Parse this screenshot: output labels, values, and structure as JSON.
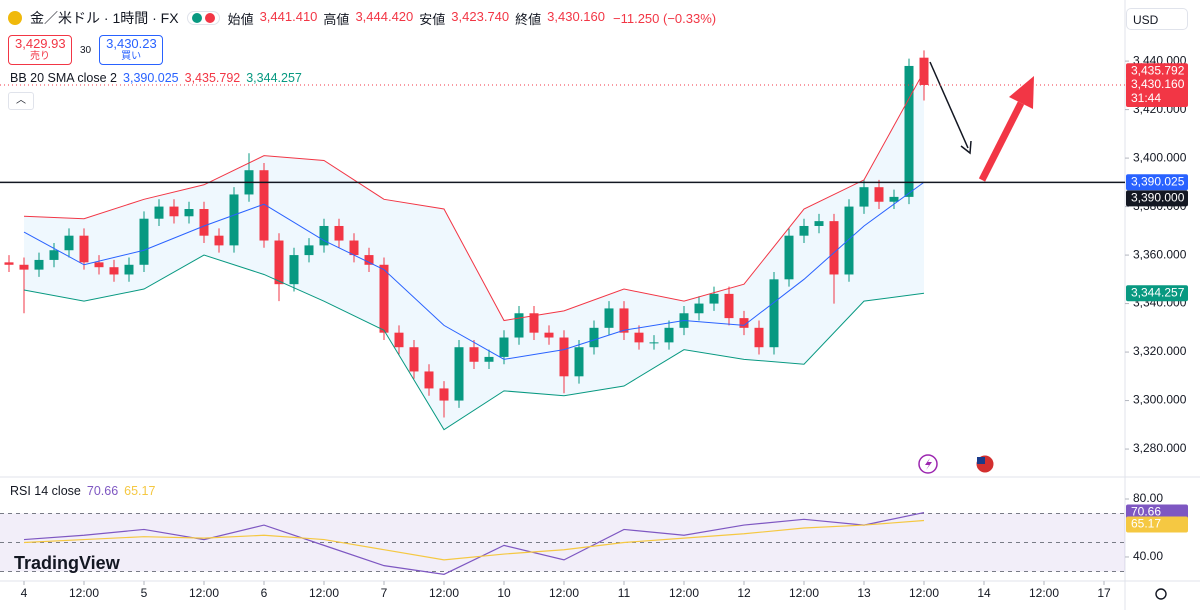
{
  "header": {
    "symbol": "金／米ドル · 1時間 · FX",
    "ohlc": [
      {
        "label": "始値",
        "value": "3,441.410"
      },
      {
        "label": "高値",
        "value": "3,444.420"
      },
      {
        "label": "安値",
        "value": "3,423.740"
      },
      {
        "label": "終値",
        "value": "3,430.160"
      }
    ],
    "change": "−11.250 (−0.33%)",
    "sell": {
      "price": "3,429.93",
      "label": "売り"
    },
    "spread": "30",
    "buy": {
      "price": "3,430.23",
      "label": "買い"
    },
    "currency": "USD",
    "logo": "TradingView"
  },
  "chart_data": [
    {
      "type": "candlestick",
      "up_color": "#089981",
      "down_color": "#f23645",
      "x": [
        -3,
        0,
        3,
        6,
        9,
        12,
        15,
        18,
        21,
        24,
        27,
        30,
        33,
        36,
        39,
        42,
        45,
        48,
        51,
        54,
        57,
        60,
        63,
        66,
        69,
        72,
        75,
        78,
        81,
        84,
        87,
        90,
        93,
        96,
        99,
        102,
        105,
        108,
        111,
        114,
        117,
        120,
        123,
        126,
        129,
        132,
        135,
        138,
        141,
        144,
        147,
        150,
        153,
        156,
        159,
        162,
        165,
        168,
        171,
        174,
        177,
        180
      ],
      "open": [
        3357,
        3356,
        3354,
        3358,
        3362,
        3368,
        3357,
        3355,
        3352,
        3356,
        3375,
        3380,
        3376,
        3379,
        3368,
        3364,
        3385,
        3395,
        3366,
        3348,
        3360,
        3364,
        3372,
        3366,
        3360,
        3356,
        3328,
        3322,
        3312,
        3305,
        3300,
        3322,
        3316,
        3318,
        3326,
        3336,
        3328,
        3326,
        3310,
        3322,
        3330,
        3338,
        3328,
        3324,
        3324,
        3330,
        3336,
        3340,
        3344,
        3334,
        3330,
        3322,
        3350,
        3368,
        3372,
        3374,
        3352,
        3380,
        3388,
        3382,
        3384,
        3441.41
      ],
      "high": [
        3360,
        3359,
        3361,
        3365,
        3371,
        3371,
        3360,
        3358,
        3359,
        3378,
        3383,
        3383,
        3382,
        3382,
        3371,
        3388,
        3402,
        3398,
        3369,
        3363,
        3367,
        3375,
        3375,
        3369,
        3363,
        3359,
        3331,
        3325,
        3315,
        3308,
        3325,
        3325,
        3321,
        3329,
        3339,
        3339,
        3331,
        3329,
        3325,
        3333,
        3341,
        3341,
        3331,
        3327,
        3333,
        3339,
        3343,
        3347,
        3347,
        3337,
        3333,
        3353,
        3371,
        3375,
        3377,
        3377,
        3383,
        3391,
        3391,
        3387,
        3441,
        3444.42
      ],
      "low": [
        3353,
        3336,
        3351,
        3355,
        3359,
        3354,
        3352,
        3349,
        3349,
        3353,
        3372,
        3373,
        3373,
        3365,
        3361,
        3361,
        3382,
        3363,
        3341,
        3345,
        3357,
        3361,
        3363,
        3357,
        3353,
        3325,
        3319,
        3309,
        3302,
        3293,
        3297,
        3313,
        3313,
        3315,
        3323,
        3325,
        3323,
        3303,
        3307,
        3319,
        3327,
        3325,
        3321,
        3321,
        3321,
        3327,
        3333,
        3337,
        3331,
        3327,
        3319,
        3319,
        3347,
        3365,
        3369,
        3340,
        3349,
        3377,
        3379,
        3379,
        3381,
        3423.74
      ],
      "close": [
        3356,
        3354,
        3358,
        3362,
        3368,
        3357,
        3355,
        3352,
        3356,
        3375,
        3380,
        3376,
        3379,
        3368,
        3364,
        3385,
        3395,
        3366,
        3348,
        3360,
        3364,
        3372,
        3366,
        3360,
        3356,
        3328,
        3322,
        3312,
        3305,
        3300,
        3322,
        3316,
        3318,
        3326,
        3336,
        3328,
        3326,
        3310,
        3322,
        3330,
        3338,
        3328,
        3324,
        3324,
        3330,
        3336,
        3340,
        3344,
        3334,
        3330,
        3322,
        3350,
        3368,
        3372,
        3374,
        3352,
        3380,
        3388,
        3382,
        3384,
        3438,
        3430.16
      ],
      "xlim": [
        -4.8,
        220.2
      ],
      "ylim": [
        3269.3,
        3465.2
      ],
      "grid": false,
      "xticks": [
        {
          "value": 0,
          "label": "4"
        },
        {
          "value": 12,
          "label": "12:00"
        },
        {
          "value": 24,
          "label": "5"
        },
        {
          "value": 36,
          "label": "12:00"
        },
        {
          "value": 48,
          "label": "6"
        },
        {
          "value": 60,
          "label": "12:00"
        },
        {
          "value": 72,
          "label": "7"
        },
        {
          "value": 84,
          "label": "12:00"
        },
        {
          "value": 96,
          "label": "10"
        },
        {
          "value": 108,
          "label": "12:00"
        },
        {
          "value": 120,
          "label": "11"
        },
        {
          "value": 132,
          "label": "12:00"
        },
        {
          "value": 144,
          "label": "12"
        },
        {
          "value": 156,
          "label": "12:00"
        },
        {
          "value": 168,
          "label": "13"
        },
        {
          "value": 180,
          "label": "12:00"
        },
        {
          "value": 192,
          "label": "14"
        },
        {
          "value": 204,
          "label": "12:00"
        },
        {
          "value": 216,
          "label": "17"
        }
      ],
      "yticks": [
        {
          "value": 3280,
          "label": "3,280.000"
        },
        {
          "value": 3300,
          "label": "3,300.000"
        },
        {
          "value": 3320,
          "label": "3,320.000"
        },
        {
          "value": 3340,
          "label": "3,340.000"
        },
        {
          "value": 3360,
          "label": "3,360.000"
        },
        {
          "value": 3380,
          "label": "3,380.000"
        },
        {
          "value": 3400,
          "label": "3,400.000"
        },
        {
          "value": 3420,
          "label": "3,420.000"
        },
        {
          "value": 3440,
          "label": "3,440.000"
        }
      ],
      "overlay": {
        "title": "BB 20 SMA close 2",
        "x": [
          0,
          12,
          24,
          36,
          48,
          60,
          72,
          84,
          96,
          108,
          120,
          132,
          144,
          156,
          168,
          180
        ],
        "series": [
          {
            "color": "#2962ff",
            "values": [
              3369.5,
              3356,
              3362,
              3372,
              3381,
              3366,
              3354,
              3331,
              3317,
              3321,
              3329,
              3333,
              3331,
              3350,
              3372,
              3390.025
            ],
            "last_label": "3,390.025"
          },
          {
            "color": "#f23645",
            "values": [
              3376,
              3375,
              3383,
              3389,
              3401,
              3399,
              3383,
              3379,
              3333,
              3337,
              3346,
              3341,
              3348,
              3379,
              3391,
              3435.792
            ],
            "last_label": "3,435.792"
          },
          {
            "color": "#089981",
            "values": [
              3345.6,
              3341,
              3346,
              3360,
              3352,
              3341,
              3329,
              3288,
              3304,
              3302,
              3306,
              3321,
              3317,
              3315,
              3341,
              3344.257
            ],
            "last_label": "3,344.257"
          }
        ]
      },
      "hline": {
        "value": 3390,
        "label": "3,390.000",
        "color": "#131722"
      },
      "last_price": {
        "value": 3430.16,
        "label": "3,430.160",
        "countdown": "31:44"
      }
    },
    {
      "type": "line",
      "title": "RSI 14 close",
      "xlim": [
        -4.8,
        220.2
      ],
      "ylim": [
        24.1,
        94.5
      ],
      "x": [
        0,
        12,
        24,
        36,
        48,
        60,
        72,
        84,
        96,
        108,
        120,
        132,
        144,
        156,
        168,
        180
      ],
      "series": [
        {
          "color": "#7e57c2",
          "values": [
            52,
            55,
            59,
            52,
            62,
            48,
            34,
            28,
            48,
            38,
            59,
            55,
            62,
            66,
            62,
            70.66
          ],
          "last_label": "70.66"
        },
        {
          "color": "#f5c842",
          "values": [
            50,
            52,
            54,
            53,
            55,
            52,
            45,
            38,
            42,
            45,
            50,
            53,
            56,
            60,
            62,
            65.17
          ],
          "last_label": "65.17"
        }
      ],
      "yticks": [
        {
          "value": 40,
          "label": "40.00"
        },
        {
          "value": 80,
          "label": "80.00"
        }
      ],
      "levels": [
        30,
        50,
        70
      ]
    }
  ]
}
